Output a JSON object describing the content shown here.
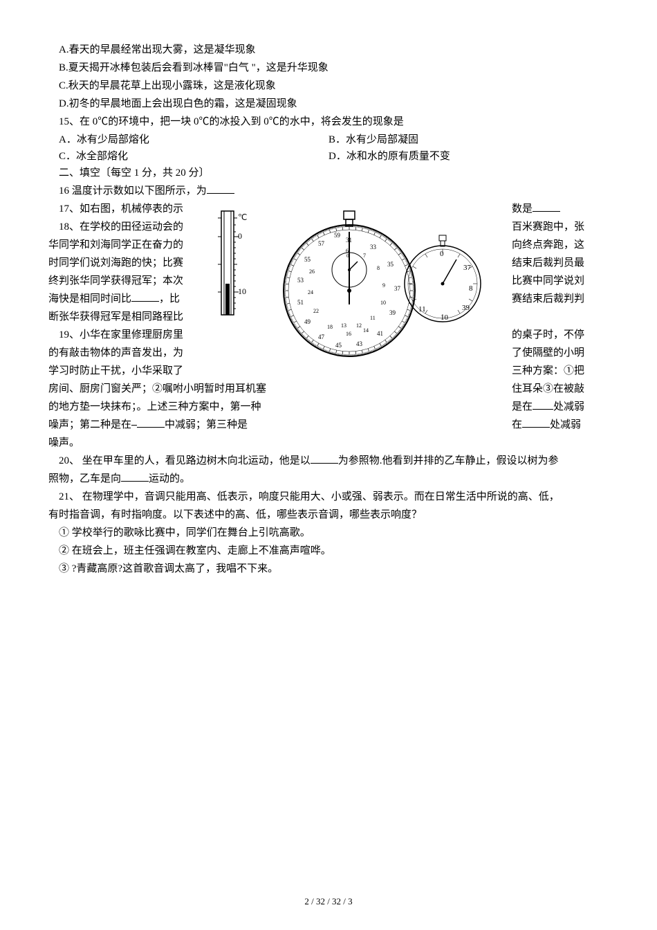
{
  "options": {
    "a": "A.春天的早晨经常出现大雾，这是凝华现象",
    "b": "B.夏天揭开冰棒包装后会看到冰棒冒\"白气 \"，这是升华现象",
    "c": "C.秋天的早晨花草上出现小露珠，这是液化现象",
    "d": "D.初冬的早晨地面上会出现白色的霜，这是凝固现象"
  },
  "q15": {
    "stem": "15、在 0℃的环境中，把一块 0℃的冰投入到 0℃的水中，将会发生的现象是",
    "a": "A．冰有少局部熔化",
    "b": "B．水有少局部凝固",
    "c": "C．冰全部熔化",
    "d": "D．冰和水的原有质量不变"
  },
  "section2": "二、填空〔每空 1 分，共 20 分〕",
  "q16": "16 温度计示数如以下图所示，为",
  "q17_left": "17、如右图，机械停表的示",
  "q17_right": "数是",
  "q18": {
    "l1_left": "18、在学校的田径运动会的",
    "l1_right": "百米赛跑中，张",
    "l2_left": "华同学和刘海同学正在奋力的",
    "l2_right": "向终点奔跑，这",
    "l3_left": "时同学们说刘海跑的快；比赛",
    "l3_right": "结束后裁判员最",
    "l4_left": "终判张华同学获得冠军；本次",
    "l4_right": "比赛中同学说刘",
    "l5_left": "海快是相同时间比",
    "l5_mid": "，比",
    "l5_right": "赛结束后裁判判",
    "l6_left": "断张华获得冠军是相同路程比"
  },
  "q19": {
    "l1_left": "19、小华在家里修理厨房里",
    "l1_right": "的桌子时，不停",
    "l2_left": "的有敲击物体的声音发出，为",
    "l2_right": "了使隔壁的小明",
    "l3_left": "学习时防止干扰，小华采取了",
    "l3_right": "三种方案：①把",
    "l4_left": "房间、厨房门窗关严；②嘱咐小明暂时用耳机塞",
    "l4_right": "住耳朵③在被敲",
    "l5_left": "的地方垫一块抹布；。上述三种方案中，第一种",
    "l5_right_a": "是在",
    "l5_right_b": "处减弱",
    "l6_left_a": "噪声；第二种是在",
    "l6_left_b": "中减弱；第三种是",
    "l6_right_a": "在",
    "l6_right_b": "处减弱",
    "l7": "噪声。"
  },
  "q20": {
    "a": "20、 坐在甲车里的人，看见路边树木向北运动，他是以",
    "b": "为参照物.他看到并排的乙车静止，假设以树为参",
    "c": "照物，乙车是向",
    "d": "运动的。"
  },
  "q21": {
    "stem1": "21、 在物理学中，音调只能用高、低表示，响度只能用大、小或强、弱表示。而在日常生活中所说的高、低，",
    "stem2": "有时指音调，有时指响度。以下表述中的高、低，哪些表示音调，哪些表示响度？",
    "i1": "① 学校举行的歌咏比赛中，同学们在舞台上引吭高歌。",
    "i2": "② 在班会上，班主任强调在教室内、走廊上不准高声喧哗。",
    "i3": "③ ?青藏高原?这首歌音调太高了，我唱不下来。"
  },
  "footer": "2 / 32 / 32 / 3",
  "thermometer": {
    "unit": "℃",
    "top_tick": "0",
    "bottom_tick": "10",
    "stroke": "#000000",
    "fill_black": "#000000"
  },
  "stopwatch": {
    "stroke": "#000000",
    "small_numbers": [
      "0",
      "37",
      "8",
      "39",
      "10",
      "11"
    ],
    "outer_numbers": [
      "53",
      "55",
      "57",
      "59",
      "31",
      "33",
      "35",
      "37",
      "39",
      "22",
      "24",
      "26",
      "28",
      "41",
      "43",
      "45",
      "47",
      "49",
      "51",
      "14",
      "16",
      "18"
    ],
    "inner_numbers": [
      "6",
      "7",
      "8",
      "9",
      "10",
      "11",
      "12",
      "13"
    ]
  }
}
